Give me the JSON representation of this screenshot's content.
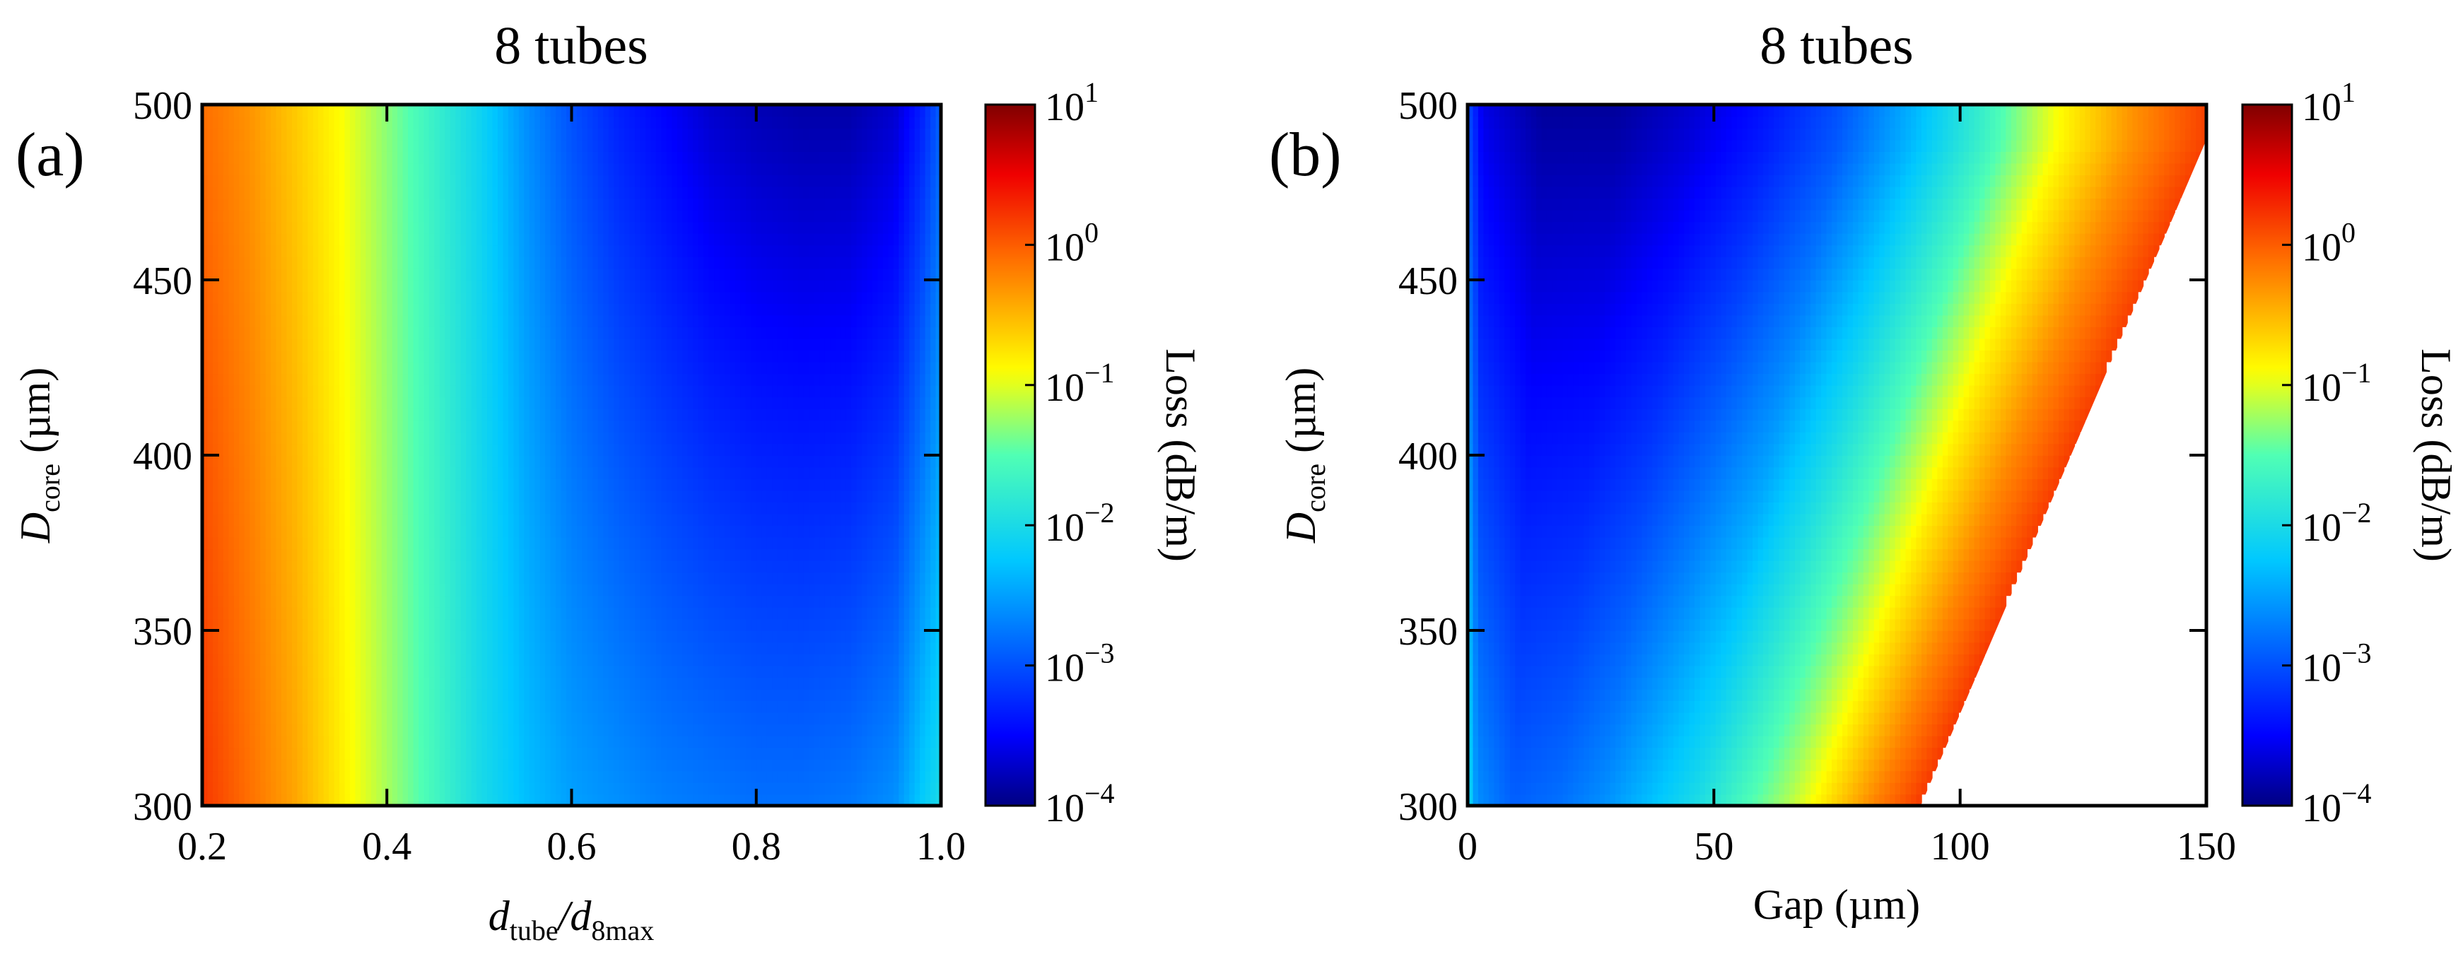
{
  "chart_data": [
    {
      "type": "heatmap",
      "panel_label": "(a)",
      "title": "8 tubes",
      "xlabel": {
        "main": "d",
        "sub1": "tube",
        "sep": "/d",
        "sub2": "8max"
      },
      "ylabel": {
        "main": "D",
        "sub": "core",
        "unit": " (µm)"
      },
      "xlim": [
        0.2,
        1.0
      ],
      "ylim": [
        300,
        500
      ],
      "xticks": [
        0.2,
        0.4,
        0.6,
        0.8,
        1.0
      ],
      "xtick_labels": [
        "0.2",
        "0.4",
        "0.6",
        "0.8",
        "1.0"
      ],
      "yticks": [
        300,
        350,
        400,
        450,
        500
      ],
      "ytick_labels": [
        "300",
        "350",
        "400",
        "450",
        "500"
      ],
      "colorbar": {
        "label": "Loss (dB/m)",
        "scale": "log",
        "range_exp": [
          -4,
          1
        ],
        "ticks_exp": [
          "1",
          "0",
          "−1",
          "−2",
          "−3",
          "−4"
        ],
        "base": "10"
      },
      "x_sample": [
        0.2,
        0.25,
        0.3,
        0.35,
        0.4,
        0.45,
        0.5,
        0.55,
        0.6,
        0.65,
        0.7,
        0.75,
        0.8,
        0.85,
        0.9,
        0.95,
        0.98,
        1.0
      ],
      "log10_loss_at_300um": [
        0.2,
        -0.1,
        -0.4,
        -0.8,
        -1.2,
        -1.6,
        -2.0,
        -2.3,
        -2.5,
        -2.6,
        -2.7,
        -2.75,
        -2.8,
        -2.8,
        -2.75,
        -2.6,
        -2.2,
        -2.0
      ],
      "log10_loss_at_500um": [
        -0.1,
        -0.3,
        -0.6,
        -0.9,
        -1.3,
        -1.7,
        -2.1,
        -2.6,
        -3.0,
        -3.3,
        -3.5,
        -3.7,
        -3.8,
        -3.85,
        -3.85,
        -3.7,
        -3.3,
        -2.9
      ]
    },
    {
      "type": "heatmap",
      "panel_label": "(b)",
      "title": "8 tubes",
      "xlabel": {
        "main": "Gap (µm)"
      },
      "ylabel": {
        "main": "D",
        "sub": "core",
        "unit": " (µm)"
      },
      "xlim": [
        0,
        150
      ],
      "ylim": [
        300,
        500
      ],
      "xticks": [
        0,
        50,
        100,
        150
      ],
      "xtick_labels": [
        "0",
        "50",
        "100",
        "150"
      ],
      "yticks": [
        300,
        350,
        400,
        450,
        500
      ],
      "ytick_labels": [
        "300",
        "350",
        "400",
        "450",
        "500"
      ],
      "valid_region_max_gap": {
        "at_300um": 92,
        "at_500um": 150,
        "at_top_right_y": 490
      },
      "colorbar": {
        "label": "Loss (dB/m)",
        "scale": "log",
        "range_exp": [
          -4,
          1
        ],
        "ticks_exp": [
          "1",
          "0",
          "−1",
          "−2",
          "−3",
          "−4"
        ],
        "base": "10"
      },
      "gap_sample_fraction": [
        0,
        0.02,
        0.1,
        0.2,
        0.3,
        0.4,
        0.5,
        0.6,
        0.7,
        0.8,
        0.9,
        1.0
      ],
      "log10_loss_at_300um": [
        -2.0,
        -2.6,
        -2.9,
        -2.8,
        -2.6,
        -2.3,
        -2.0,
        -1.6,
        -1.2,
        -0.7,
        -0.2,
        0.2
      ],
      "log10_loss_at_500um": [
        -3.0,
        -3.6,
        -3.9,
        -3.9,
        -3.7,
        -3.4,
        -3.0,
        -2.4,
        -1.7,
        -0.9,
        -0.3,
        0.15
      ]
    }
  ]
}
